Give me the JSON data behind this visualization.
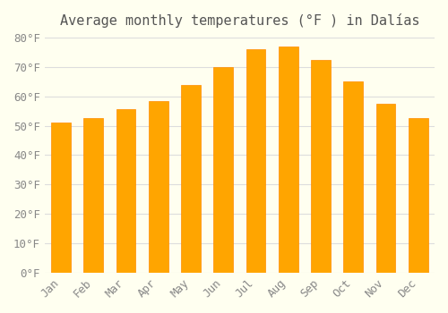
{
  "title": "Average monthly temperatures (°F ) in Dalías",
  "months": [
    "Jan",
    "Feb",
    "Mar",
    "Apr",
    "May",
    "Jun",
    "Jul",
    "Aug",
    "Sep",
    "Oct",
    "Nov",
    "Dec"
  ],
  "values": [
    51,
    52.5,
    55.5,
    58.5,
    64,
    70,
    76,
    77,
    72.5,
    65,
    57.5,
    52.5
  ],
  "bar_color": "#FFA500",
  "bar_edge_color": "#FF8C00",
  "ylim": [
    0,
    80
  ],
  "yticks": [
    0,
    10,
    20,
    30,
    40,
    50,
    60,
    70,
    80
  ],
  "ytick_labels": [
    "0°F",
    "10°F",
    "20°F",
    "30°F",
    "40°F",
    "50°F",
    "60°F",
    "70°F",
    "80°F"
  ],
  "background_color": "#FFFFF0",
  "grid_color": "#DDDDDD",
  "title_fontsize": 11,
  "tick_fontsize": 9,
  "title_color": "#555555",
  "tick_color": "#888888"
}
